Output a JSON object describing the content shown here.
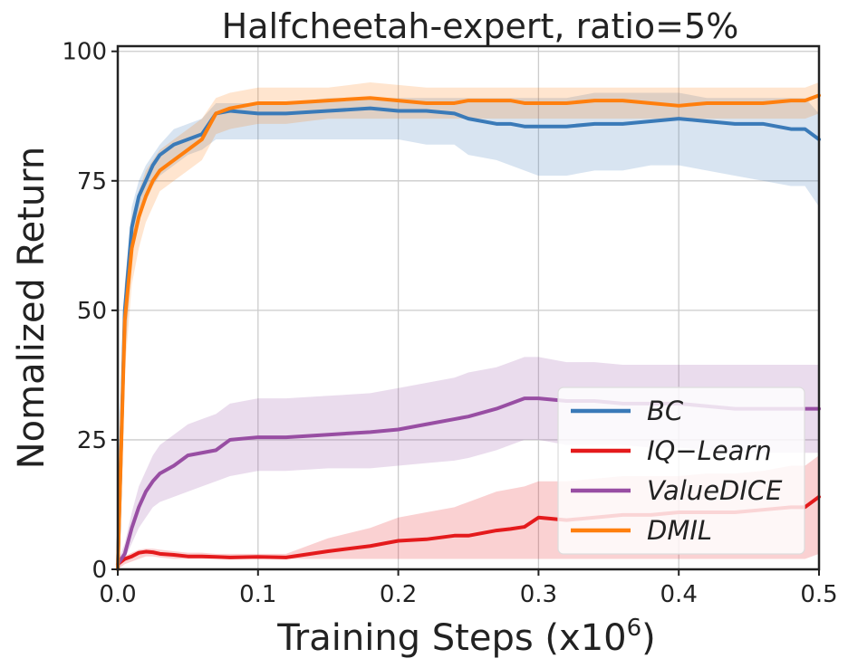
{
  "chart_data": {
    "type": "line",
    "title": "Halfcheetah-expert, ratio=5%",
    "xlabel_main": "Training Steps (x10",
    "xlabel_exp": "6",
    "xlabel_close": ")",
    "ylabel": "Nomalized Return",
    "xlim": [
      0,
      0.5
    ],
    "ylim": [
      0,
      101
    ],
    "xticks": [
      0.0,
      0.1,
      0.2,
      0.3,
      0.4,
      0.5
    ],
    "xtick_labels": [
      "0.0",
      "0.1",
      "0.2",
      "0.3",
      "0.4",
      "0.5"
    ],
    "yticks": [
      0,
      25,
      50,
      75,
      100
    ],
    "ytick_labels": [
      "0",
      "25",
      "50",
      "75",
      "100"
    ],
    "grid": true,
    "legend_position": "lower-right",
    "x": [
      0,
      0.005,
      0.01,
      0.015,
      0.02,
      0.025,
      0.03,
      0.04,
      0.05,
      0.06,
      0.07,
      0.08,
      0.1,
      0.12,
      0.15,
      0.18,
      0.2,
      0.22,
      0.24,
      0.25,
      0.27,
      0.28,
      0.29,
      0.3,
      0.32,
      0.34,
      0.36,
      0.38,
      0.4,
      0.42,
      0.44,
      0.46,
      0.48,
      0.49,
      0.5
    ],
    "series": [
      {
        "name": "BC",
        "color": "#3a7ab8",
        "values": [
          0,
          50,
          66,
          72,
          75,
          78,
          80,
          82,
          83,
          84,
          88,
          88.5,
          88,
          88,
          88.5,
          89,
          88.5,
          88.5,
          88,
          87,
          86,
          86,
          85.5,
          85.5,
          85.5,
          86,
          86,
          86.5,
          87,
          86.5,
          86,
          86,
          85,
          85,
          83
        ],
        "lower": [
          0,
          40,
          60,
          68,
          71,
          74,
          76,
          78,
          80,
          81,
          83,
          83,
          83,
          83,
          83,
          83,
          83,
          82,
          82,
          80,
          79,
          78,
          77,
          76,
          76,
          77,
          77,
          78,
          78,
          77,
          76,
          75,
          74,
          74,
          70
        ],
        "upper": [
          0,
          55,
          70,
          75,
          78,
          80,
          82,
          85,
          86,
          87,
          90,
          90,
          90,
          90,
          91,
          91,
          91,
          91,
          91,
          91,
          91,
          91,
          91,
          91,
          91,
          92,
          92,
          92,
          92,
          91,
          91,
          91,
          91,
          91,
          88
        ]
      },
      {
        "name": "IQ−Learn",
        "color": "#e41a1c",
        "values": [
          1,
          2,
          2.5,
          3.2,
          3.4,
          3.3,
          3,
          2.8,
          2.5,
          2.5,
          2.4,
          2.3,
          2.4,
          2.3,
          3.5,
          4.5,
          5.5,
          5.8,
          6.5,
          6.5,
          7.5,
          7.8,
          8.2,
          10,
          9.5,
          10,
          10.5,
          10.5,
          11,
          11,
          11,
          11.5,
          12,
          12,
          14
        ],
        "lower": [
          0,
          1,
          1.5,
          2,
          2.5,
          2.5,
          2.3,
          2,
          2,
          2,
          2,
          2,
          2,
          2,
          2,
          2,
          2,
          2,
          2,
          2,
          2,
          2,
          2,
          2,
          2,
          2,
          2,
          2,
          2,
          2,
          2,
          2,
          2,
          2,
          3
        ],
        "upper": [
          1.5,
          2.5,
          3.2,
          3.8,
          4,
          4,
          3.8,
          3.5,
          3.2,
          3.2,
          3,
          3,
          3,
          3,
          6,
          8,
          10,
          11,
          12,
          13,
          15,
          15.5,
          16,
          17,
          17,
          17.5,
          18,
          18,
          18,
          18.5,
          18.5,
          19,
          20,
          20,
          22
        ]
      },
      {
        "name": "ValueDICE",
        "color": "#984ea3",
        "values": [
          1,
          3,
          8,
          12,
          15,
          17,
          18.5,
          20,
          22,
          22.5,
          23,
          25,
          25.5,
          25.5,
          26,
          26.5,
          27,
          28,
          29,
          29.5,
          31,
          32,
          33,
          33,
          32.5,
          32.5,
          32,
          32,
          32,
          31.5,
          31,
          31,
          31,
          31,
          31
        ],
        "lower": [
          0,
          2,
          5,
          8,
          10,
          12,
          13,
          14,
          15,
          16,
          17,
          18,
          19,
          19,
          19.5,
          19.5,
          20,
          20.5,
          21,
          21.5,
          23,
          24,
          25,
          25,
          24,
          24,
          24,
          23.5,
          23.5,
          23,
          22.5,
          22.5,
          22.5,
          22.5,
          22.5
        ],
        "upper": [
          1.5,
          5,
          11,
          16,
          19,
          22,
          24,
          26,
          28,
          29,
          30,
          32,
          33,
          33,
          33.5,
          34,
          35,
          36,
          37,
          38,
          39,
          40,
          41,
          41,
          40,
          40,
          39.5,
          39.5,
          39.5,
          39.5,
          39.5,
          39.5,
          39.5,
          39.5,
          39.5
        ]
      },
      {
        "name": "DMIL",
        "color": "#ff7f0e",
        "values": [
          0,
          48,
          62,
          68,
          72,
          75,
          77,
          79,
          81,
          83,
          88,
          89,
          90,
          90,
          90.5,
          91,
          90.5,
          90,
          90,
          90.5,
          90.5,
          90.5,
          90,
          90,
          90,
          90.5,
          90.5,
          90,
          89.5,
          90,
          90,
          90,
          90.5,
          90.5,
          91.5
        ],
        "lower": [
          0,
          38,
          55,
          62,
          67,
          70,
          73,
          75,
          77,
          79,
          84,
          85,
          86,
          86,
          87,
          87,
          87,
          87,
          87,
          87,
          87,
          87,
          87,
          87,
          87,
          87,
          87,
          87,
          87,
          87,
          87,
          87,
          87,
          87,
          88
        ],
        "upper": [
          0,
          55,
          68,
          73,
          77,
          79,
          81,
          83,
          85,
          87,
          91,
          92,
          93,
          93,
          93,
          94,
          93.5,
          93,
          93,
          93,
          93,
          93,
          93,
          93,
          93,
          93,
          93,
          93,
          93,
          93,
          93,
          93,
          93,
          93,
          94
        ]
      }
    ]
  }
}
